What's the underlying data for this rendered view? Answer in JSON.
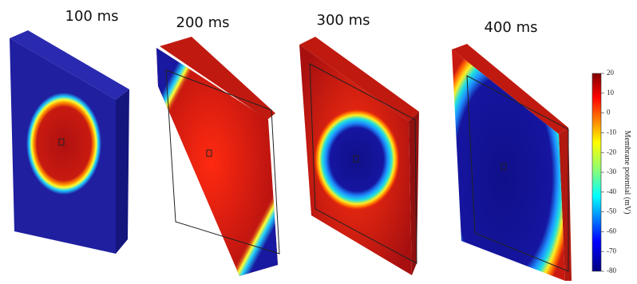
{
  "panels": [
    {
      "label": "100 ms"
    },
    {
      "label": "200 ms"
    },
    {
      "label": "300 ms"
    },
    {
      "label": "400 ms"
    }
  ],
  "colorbar": {
    "label": "Membrane potential (mV)",
    "range": [
      -80,
      20
    ],
    "ticks": [
      20,
      10,
      0,
      -10,
      -20,
      -30,
      -40,
      -50,
      -60,
      -70,
      -80
    ]
  }
}
